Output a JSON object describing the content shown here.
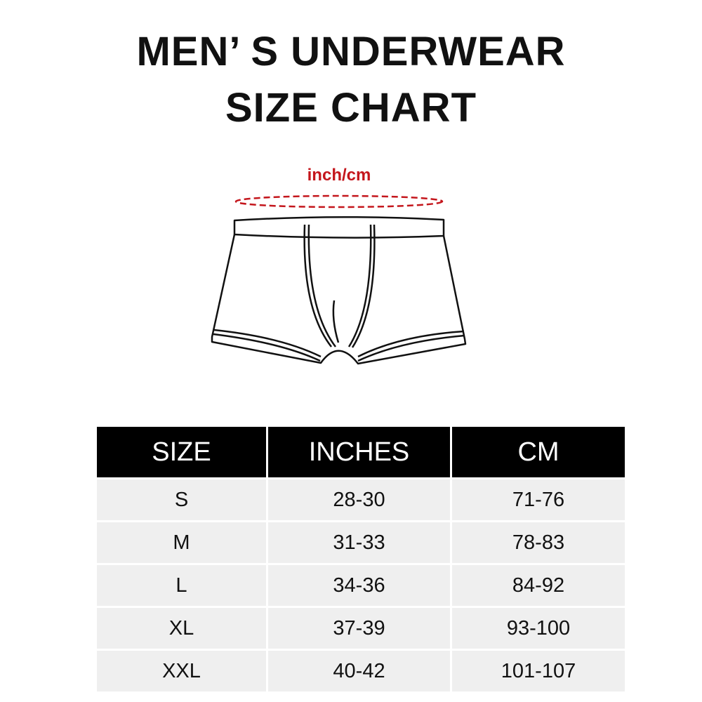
{
  "title": {
    "line1": "MEN’ S UNDERWEAR",
    "line2": "SIZE CHART"
  },
  "diagram": {
    "unit_label": "inch/cm",
    "accent_color": "#c4161c",
    "measure": "waist"
  },
  "table": {
    "headers": [
      "SIZE",
      "INCHES",
      "CM"
    ],
    "rows": [
      [
        "S",
        "28-30",
        "71-76"
      ],
      [
        "M",
        "31-33",
        "78-83"
      ],
      [
        "L",
        "34-36",
        "84-92"
      ],
      [
        "XL",
        "37-39",
        "93-100"
      ],
      [
        "XXL",
        "40-42",
        "101-107"
      ]
    ]
  }
}
